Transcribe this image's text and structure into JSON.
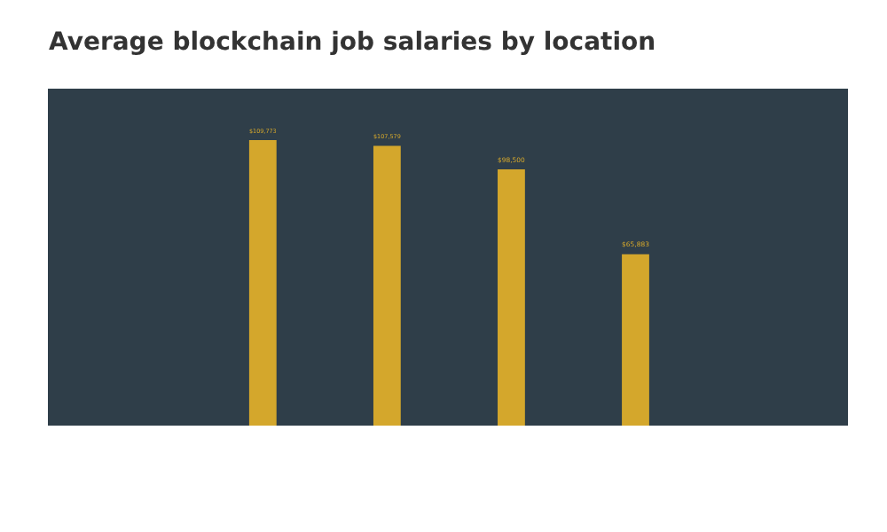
{
  "chart_data": {
    "type": "bar",
    "title": "Average blockchain job salaries by location",
    "categories": [
      null,
      null,
      null,
      null
    ],
    "values": [
      109773,
      107579,
      98500,
      65883
    ],
    "value_labels": [
      "$109,773",
      "$107,579",
      "$98,500",
      "$65,883"
    ],
    "color": "#d4a72c"
  }
}
